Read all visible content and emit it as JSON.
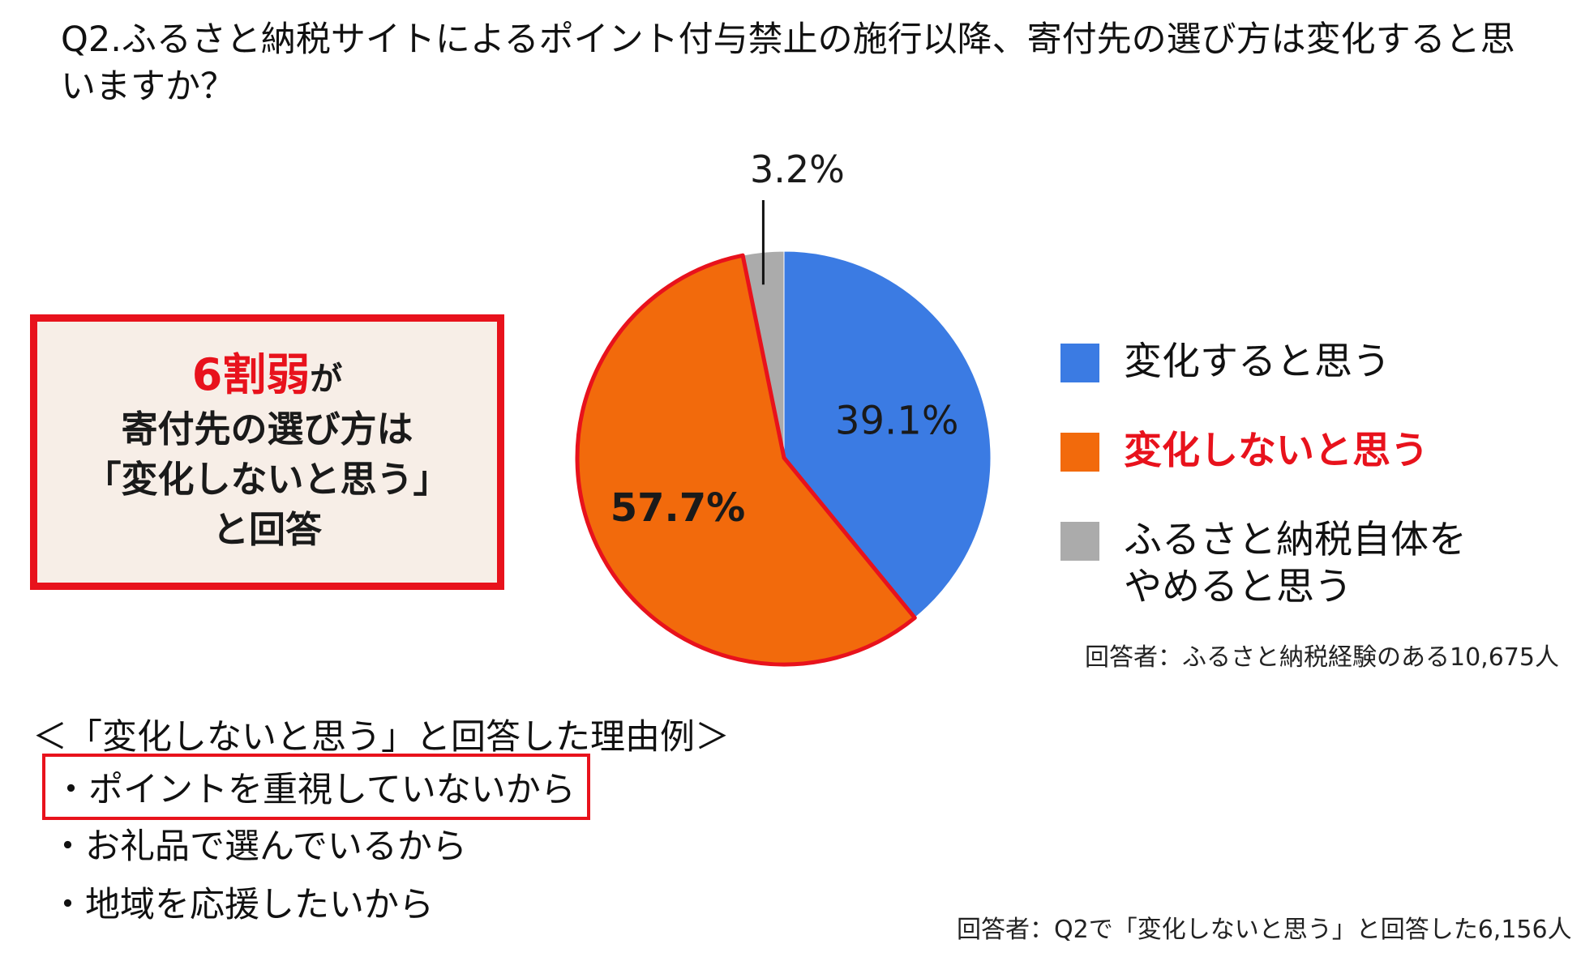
{
  "title": "Q2.ふるさと納税サイトによるポイント付与禁止の施行以降、寄付先の選び方は変化すると思いますか？",
  "callout": {
    "highlight": "6割弱",
    "highlight_suffix": "が",
    "line2": "寄付先の選び方は",
    "line3": "「変化しないと思う」",
    "line4": "と回答"
  },
  "chart_data": {
    "type": "pie",
    "title": "",
    "slices": [
      {
        "label": "変化すると思う",
        "value": 39.1,
        "value_label": "39.1%",
        "color": "#3b7be3"
      },
      {
        "label": "変化しないと思う",
        "value": 57.7,
        "value_label": "57.7%",
        "color": "#f26a0c",
        "highlighted": true
      },
      {
        "label": "ふるさと納税自体を\nやめると思う",
        "value": 3.2,
        "value_label": "3.2%",
        "color": "#ababab"
      }
    ],
    "highlight_border_color": "#e8121c",
    "start": "12 o'clock, clockwise",
    "legend_position": "right"
  },
  "notes": {
    "respondents_q2": "回答者：ふるさと納税経験のある10,675人",
    "respondents_reasons": "回答者：Q2で「変化しないと思う」と回答した6,156人"
  },
  "reasons": {
    "heading": "＜「変化しないと思う」と回答した理由例＞",
    "items": [
      "・ポイントを重視していないから",
      "・お礼品で選んでいるから",
      "・地域を応援したいから"
    ],
    "highlighted_index": 0
  }
}
